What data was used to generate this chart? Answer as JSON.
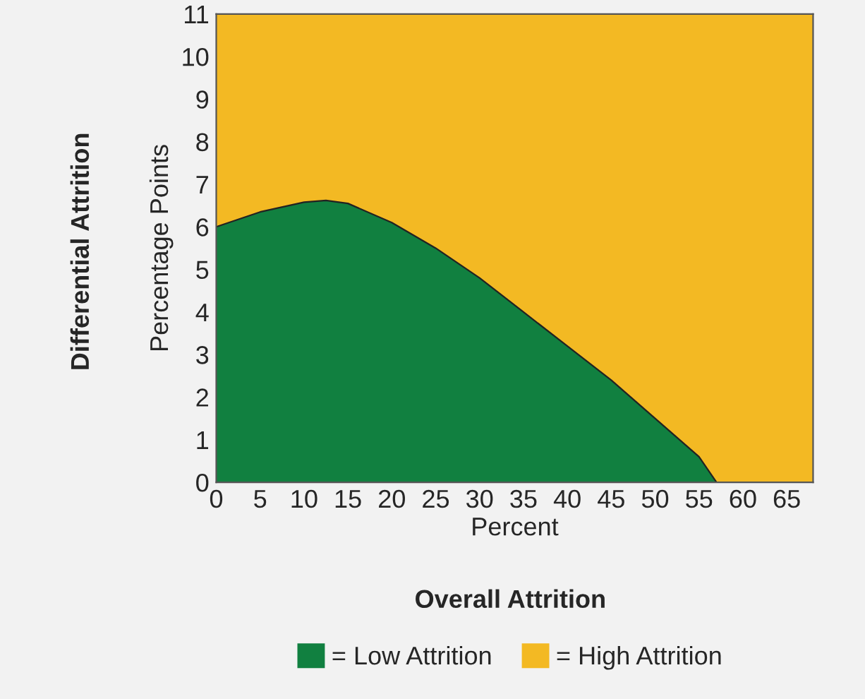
{
  "chart_data": {
    "type": "area",
    "stacked": true,
    "x": [
      0,
      5,
      10,
      12.5,
      15,
      20,
      25,
      30,
      35,
      40,
      45,
      50,
      55,
      57,
      60,
      65,
      68
    ],
    "series": [
      {
        "name": "= Low Attrition",
        "color": "#118040",
        "values": [
          6,
          6.35,
          6.58,
          6.62,
          6.55,
          6.1,
          5.5,
          4.8,
          4.0,
          3.2,
          2.4,
          1.5,
          0.6,
          0,
          0,
          0,
          0
        ]
      },
      {
        "name": "= High Attrition",
        "color": "#f3b923",
        "values": [
          5,
          4.65,
          4.42,
          4.38,
          4.45,
          4.9,
          5.5,
          6.2,
          7.0,
          7.8,
          8.6,
          9.5,
          10.4,
          11,
          11,
          11,
          11
        ]
      }
    ],
    "xlim": [
      0,
      68
    ],
    "ylim": [
      0,
      11
    ],
    "xticks": [
      0,
      5,
      10,
      15,
      20,
      25,
      30,
      35,
      40,
      45,
      50,
      55,
      60,
      65
    ],
    "yticks": [
      0,
      1,
      2,
      3,
      4,
      5,
      6,
      7,
      8,
      9,
      10,
      11
    ],
    "xlabel": "Percent",
    "ylabel": "Percentage Points",
    "annotations": [
      "Differential Attrition",
      "Overall Attrition"
    ],
    "legend": "bottom"
  }
}
